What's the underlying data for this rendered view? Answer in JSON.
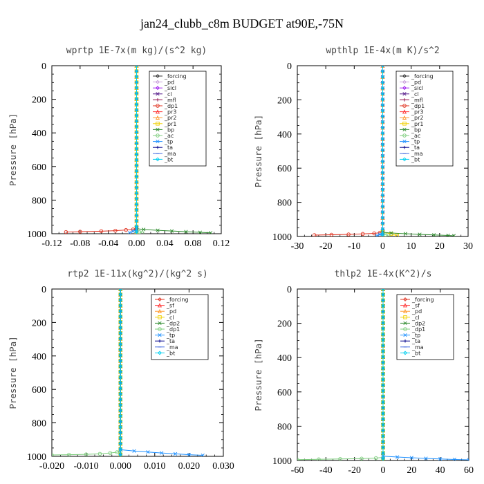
{
  "figure_title": "jan24_clubb_c8m  BUDGET at90E,-75N",
  "chart_data": [
    {
      "type": "line",
      "title": "wprtp  1E-7x(m kg)/(s^2 kg)",
      "ylabel": "Pressure [hPa]",
      "xlabel": "",
      "xlim": [
        -0.12,
        0.12
      ],
      "ylim": [
        1000,
        0
      ],
      "xticks": [
        "-0.12",
        "-0.08",
        "-0.04",
        "0.00",
        "0.04",
        "0.08",
        "0.12"
      ],
      "xtick_values": [
        -0.12,
        -0.08,
        -0.04,
        0.0,
        0.04,
        0.08,
        0.12
      ],
      "yticks": [
        "0",
        "200",
        "400",
        "600",
        "800",
        "1000"
      ],
      "ytick_values": [
        0,
        200,
        400,
        600,
        800,
        1000
      ],
      "legend_position": "top-right",
      "series": [
        {
          "name": "_forcing",
          "color": "#333333",
          "marker": "diamond",
          "x": [
            0,
            0
          ],
          "y": [
            0,
            1000
          ]
        },
        {
          "name": "_pd",
          "color": "#c9a0dc",
          "marker": "diamond",
          "x": [
            0,
            0
          ],
          "y": [
            0,
            1000
          ]
        },
        {
          "name": "_sicl",
          "color": "#a020f0",
          "marker": "diamond",
          "x": [
            0,
            0
          ],
          "y": [
            0,
            1000
          ]
        },
        {
          "name": "_cl",
          "color": "#551a8b",
          "marker": "x",
          "x": [
            0,
            0
          ],
          "y": [
            0,
            1000
          ]
        },
        {
          "name": "_mfl",
          "color": "#8b0040",
          "marker": "plus",
          "x": [
            0,
            0
          ],
          "y": [
            0,
            1000
          ]
        },
        {
          "name": "_dp1",
          "color": "#e0301e",
          "marker": "circle",
          "x": [
            -0.1,
            -0.08,
            -0.05,
            -0.03,
            -0.015,
            -0.005,
            0
          ],
          "y": [
            990,
            988,
            985,
            982,
            978,
            975,
            970
          ]
        },
        {
          "name": "_pr3",
          "color": "#ff3030",
          "marker": "triangle",
          "x": [
            0,
            0
          ],
          "y": [
            0,
            1000
          ]
        },
        {
          "name": "_pr2",
          "color": "#ff9a30",
          "marker": "triangle",
          "x": [
            0,
            0
          ],
          "y": [
            0,
            1000
          ]
        },
        {
          "name": "_pr1",
          "color": "#f0d000",
          "marker": "square",
          "x": [
            0,
            0
          ],
          "y": [
            0,
            1000
          ]
        },
        {
          "name": "_bp",
          "color": "#2e8b2e",
          "marker": "x",
          "x": [
            0,
            0.01,
            0.03,
            0.05,
            0.07,
            0.09,
            0.105
          ],
          "y": [
            970,
            975,
            980,
            984,
            988,
            992,
            995
          ]
        },
        {
          "name": "_ac",
          "color": "#7ccd7c",
          "marker": "circle",
          "x": [
            0,
            0.004,
            0.008
          ],
          "y": [
            985,
            990,
            995
          ]
        },
        {
          "name": "_tp",
          "color": "#1e90ff",
          "marker": "x",
          "x": [
            0,
            -0.005,
            -0.01
          ],
          "y": [
            975,
            985,
            995
          ]
        },
        {
          "name": "_ta",
          "color": "#00008b",
          "marker": "plus",
          "x": [
            0,
            0
          ],
          "y": [
            0,
            1000
          ]
        },
        {
          "name": "_ma",
          "color": "#4169e1",
          "marker": "dash",
          "x": [
            0,
            0
          ],
          "y": [
            0,
            1000
          ]
        },
        {
          "name": "_bt",
          "color": "#00d0f0",
          "marker": "diamond",
          "x": [
            0,
            0
          ],
          "y": [
            0,
            1000
          ]
        }
      ]
    },
    {
      "type": "line",
      "title": "wpthlp  1E-4x(m K)/s^2",
      "ylabel": "Pressure [hPa]",
      "xlabel": "",
      "xlim": [
        -30,
        30
      ],
      "ylim": [
        1000,
        0
      ],
      "xticks": [
        "-30",
        "-20",
        "-10",
        "0",
        "10",
        "20",
        "30"
      ],
      "xtick_values": [
        -30,
        -20,
        -10,
        0,
        10,
        20,
        30
      ],
      "yticks": [
        "0",
        "200",
        "400",
        "600",
        "800",
        "1000"
      ],
      "ytick_values": [
        0,
        200,
        400,
        600,
        800,
        1000
      ],
      "legend_position": "top-right",
      "series": [
        {
          "name": "_forcing",
          "color": "#333333",
          "marker": "diamond",
          "x": [
            0,
            0
          ],
          "y": [
            0,
            1000
          ]
        },
        {
          "name": "_pd",
          "color": "#c9a0dc",
          "marker": "diamond",
          "x": [
            0,
            0
          ],
          "y": [
            0,
            1000
          ]
        },
        {
          "name": "_sicl",
          "color": "#a020f0",
          "marker": "diamond",
          "x": [
            0,
            0
          ],
          "y": [
            0,
            1000
          ]
        },
        {
          "name": "_cl",
          "color": "#551a8b",
          "marker": "x",
          "x": [
            0,
            0
          ],
          "y": [
            0,
            1000
          ]
        },
        {
          "name": "_mfl",
          "color": "#8b0040",
          "marker": "plus",
          "x": [
            0,
            0
          ],
          "y": [
            0,
            1000
          ]
        },
        {
          "name": "_dp1",
          "color": "#e0301e",
          "marker": "circle",
          "x": [
            -24,
            -18,
            -12,
            -7,
            -3,
            -1,
            0
          ],
          "y": [
            992,
            990,
            988,
            985,
            982,
            978,
            975
          ]
        },
        {
          "name": "_pr3",
          "color": "#ff3030",
          "marker": "triangle",
          "x": [
            0,
            0
          ],
          "y": [
            0,
            1000
          ]
        },
        {
          "name": "_pr2",
          "color": "#ff9a30",
          "marker": "triangle",
          "x": [
            0,
            0
          ],
          "y": [
            0,
            1000
          ]
        },
        {
          "name": "_pr1",
          "color": "#f0d000",
          "marker": "square",
          "x": [
            0,
            3,
            5
          ],
          "y": [
            975,
            985,
            995
          ]
        },
        {
          "name": "_bp",
          "color": "#2e8b2e",
          "marker": "x",
          "x": [
            0,
            3,
            8,
            13,
            18,
            23,
            25
          ],
          "y": [
            975,
            980,
            984,
            988,
            991,
            994,
            996
          ]
        },
        {
          "name": "_ac",
          "color": "#7ccd7c",
          "marker": "circle",
          "x": [
            0,
            1,
            2
          ],
          "y": [
            985,
            990,
            995
          ]
        },
        {
          "name": "_tp",
          "color": "#1e90ff",
          "marker": "x",
          "x": [
            0,
            -1,
            -2
          ],
          "y": [
            980,
            988,
            995
          ]
        },
        {
          "name": "_ta",
          "color": "#00008b",
          "marker": "plus",
          "x": [
            0,
            0
          ],
          "y": [
            0,
            1000
          ]
        },
        {
          "name": "_ma",
          "color": "#4169e1",
          "marker": "dash",
          "x": [
            0,
            0
          ],
          "y": [
            0,
            1000
          ]
        },
        {
          "name": "_bt",
          "color": "#00d0f0",
          "marker": "diamond",
          "x": [
            0,
            0
          ],
          "y": [
            0,
            1000
          ]
        }
      ]
    },
    {
      "type": "line",
      "title": "rtp2  1E-11x(kg^2)/(kg^2 s)",
      "ylabel": "Pressure [hPa]",
      "xlabel": "",
      "xlim": [
        -0.02,
        0.03
      ],
      "ylim": [
        1000,
        0
      ],
      "xticks": [
        "-0.020",
        "-0.010",
        "0.000",
        "0.010",
        "0.020",
        "0.030"
      ],
      "xtick_values": [
        -0.02,
        -0.01,
        0.0,
        0.01,
        0.02,
        0.03
      ],
      "yticks": [
        "0",
        "200",
        "400",
        "600",
        "800",
        "1000"
      ],
      "ytick_values": [
        0,
        200,
        400,
        600,
        800,
        1000
      ],
      "legend_position": "top-right",
      "series": [
        {
          "name": "_forcing",
          "color": "#e0301e",
          "marker": "diamond",
          "x": [
            0,
            0
          ],
          "y": [
            0,
            1000
          ]
        },
        {
          "name": "_sf",
          "color": "#ff3030",
          "marker": "triangle",
          "x": [
            0,
            0
          ],
          "y": [
            0,
            1000
          ]
        },
        {
          "name": "_pd",
          "color": "#ff9a30",
          "marker": "triangle",
          "x": [
            0,
            0
          ],
          "y": [
            0,
            1000
          ]
        },
        {
          "name": "_cl",
          "color": "#f0d000",
          "marker": "square",
          "x": [
            0,
            0
          ],
          "y": [
            0,
            1000
          ]
        },
        {
          "name": "_dp2",
          "color": "#2e8b2e",
          "marker": "x",
          "x": [
            0,
            0
          ],
          "y": [
            0,
            1000
          ]
        },
        {
          "name": "_dp1",
          "color": "#7ccd7c",
          "marker": "circle",
          "x": [
            -0.02,
            -0.015,
            -0.01,
            -0.006,
            -0.003,
            -0.001,
            0
          ],
          "y": [
            992,
            990,
            988,
            985,
            980,
            975,
            970
          ]
        },
        {
          "name": "_tp",
          "color": "#1e90ff",
          "marker": "x",
          "x": [
            0,
            0.004,
            0.008,
            0.012,
            0.016,
            0.02,
            0.024
          ],
          "y": [
            960,
            968,
            974,
            980,
            985,
            990,
            994
          ]
        },
        {
          "name": "_ta",
          "color": "#00008b",
          "marker": "plus",
          "x": [
            0,
            0
          ],
          "y": [
            0,
            1000
          ]
        },
        {
          "name": "_ma",
          "color": "#4169e1",
          "marker": "dash",
          "x": [
            0,
            0
          ],
          "y": [
            0,
            1000
          ]
        },
        {
          "name": "_bt",
          "color": "#00d0f0",
          "marker": "diamond",
          "x": [
            0,
            0
          ],
          "y": [
            0,
            1000
          ]
        }
      ]
    },
    {
      "type": "line",
      "title": "thlp2  1E-4x(K^2)/s",
      "ylabel": "Pressure [hPa]",
      "xlabel": "",
      "xlim": [
        -60,
        60
      ],
      "ylim": [
        1000,
        0
      ],
      "xticks": [
        "-60",
        "-40",
        "-20",
        "0",
        "20",
        "40",
        "60"
      ],
      "xtick_values": [
        -60,
        -40,
        -20,
        0,
        20,
        40,
        60
      ],
      "yticks": [
        "0",
        "200",
        "400",
        "600",
        "800",
        "1000"
      ],
      "ytick_values": [
        0,
        200,
        400,
        600,
        800,
        1000
      ],
      "legend_position": "top-right",
      "series": [
        {
          "name": "_forcing",
          "color": "#e0301e",
          "marker": "diamond",
          "x": [
            0,
            0
          ],
          "y": [
            0,
            1000
          ]
        },
        {
          "name": "_sf",
          "color": "#ff3030",
          "marker": "triangle",
          "x": [
            0,
            0
          ],
          "y": [
            0,
            1000
          ]
        },
        {
          "name": "_pd",
          "color": "#ff9a30",
          "marker": "triangle",
          "x": [
            0,
            0
          ],
          "y": [
            0,
            1000
          ]
        },
        {
          "name": "_cl",
          "color": "#f0d000",
          "marker": "square",
          "x": [
            0,
            0
          ],
          "y": [
            0,
            1000
          ]
        },
        {
          "name": "_dp2",
          "color": "#2e8b2e",
          "marker": "x",
          "x": [
            0,
            0
          ],
          "y": [
            0,
            1000
          ]
        },
        {
          "name": "_dp1",
          "color": "#7ccd7c",
          "marker": "circle",
          "x": [
            -60,
            -45,
            -30,
            -15,
            -5,
            0
          ],
          "y": [
            995,
            993,
            991,
            989,
            986,
            982
          ]
        },
        {
          "name": "_tp",
          "color": "#1e90ff",
          "marker": "x",
          "x": [
            0,
            10,
            20,
            30,
            40,
            50,
            60
          ],
          "y": [
            975,
            980,
            984,
            988,
            991,
            994,
            996
          ]
        },
        {
          "name": "_ta",
          "color": "#00008b",
          "marker": "plus",
          "x": [
            0,
            0
          ],
          "y": [
            0,
            1000
          ]
        },
        {
          "name": "_ma",
          "color": "#4169e1",
          "marker": "dash",
          "x": [
            0,
            0
          ],
          "y": [
            0,
            1000
          ]
        },
        {
          "name": "_bt",
          "color": "#00d0f0",
          "marker": "diamond",
          "x": [
            0,
            0
          ],
          "y": [
            0,
            1000
          ]
        }
      ]
    }
  ]
}
